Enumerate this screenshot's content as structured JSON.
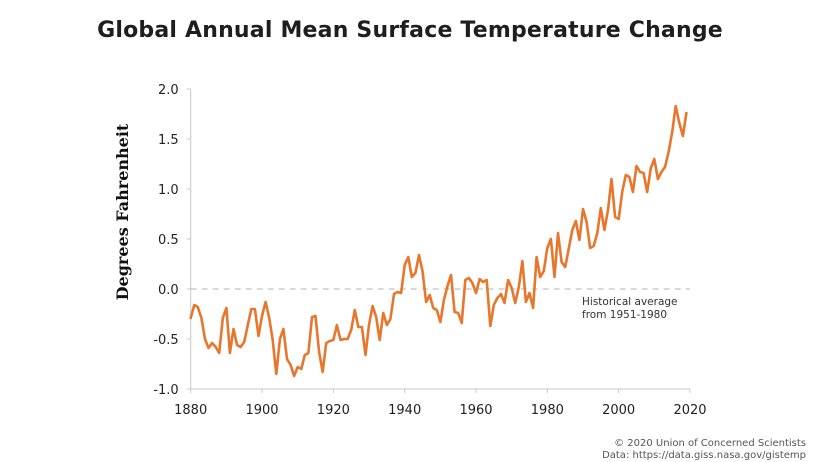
{
  "chart_data": {
    "type": "line",
    "title": "Global Annual Mean Surface Temperature Change",
    "xlabel": "",
    "ylabel": "Degrees Fahrenheit",
    "xlim": [
      1880,
      2020
    ],
    "ylim": [
      -1.0,
      2.0
    ],
    "x_ticks": [
      1880,
      1900,
      1920,
      1940,
      1960,
      1980,
      2000,
      2020
    ],
    "x_tick_labels": [
      "1880",
      "1900",
      "1920",
      "1940",
      "1960",
      "1980",
      "2000",
      "2020"
    ],
    "y_ticks": [
      -1.0,
      -0.5,
      0.0,
      0.5,
      1.0,
      1.5,
      2.0
    ],
    "y_tick_labels": [
      "-1.0",
      "-0.5",
      "0.0",
      "0.5",
      "1.0",
      "1.5",
      "2.0"
    ],
    "grid": false,
    "reference_line": {
      "y": 0.0,
      "style": "dashed",
      "label": "Historical average from 1951-1980"
    },
    "annotation_lines": [
      "Historical average",
      "from 1951-1980"
    ],
    "series": [
      {
        "name": "Global annual mean temperature anomaly",
        "color": "#E8762C",
        "x": [
          1880,
          1881,
          1882,
          1883,
          1884,
          1885,
          1886,
          1887,
          1888,
          1889,
          1890,
          1891,
          1892,
          1893,
          1894,
          1895,
          1896,
          1897,
          1898,
          1899,
          1900,
          1901,
          1902,
          1903,
          1904,
          1905,
          1906,
          1907,
          1908,
          1909,
          1910,
          1911,
          1912,
          1913,
          1914,
          1915,
          1916,
          1917,
          1918,
          1919,
          1920,
          1921,
          1922,
          1923,
          1924,
          1925,
          1926,
          1927,
          1928,
          1929,
          1930,
          1931,
          1932,
          1933,
          1934,
          1935,
          1936,
          1937,
          1938,
          1939,
          1940,
          1941,
          1942,
          1943,
          1944,
          1945,
          1946,
          1947,
          1948,
          1949,
          1950,
          1951,
          1952,
          1953,
          1954,
          1955,
          1956,
          1957,
          1958,
          1959,
          1960,
          1961,
          1962,
          1963,
          1964,
          1965,
          1966,
          1967,
          1968,
          1969,
          1970,
          1971,
          1972,
          1973,
          1974,
          1975,
          1976,
          1977,
          1978,
          1979,
          1980,
          1981,
          1982,
          1983,
          1984,
          1985,
          1986,
          1987,
          1988,
          1989,
          1990,
          1991,
          1992,
          1993,
          1994,
          1995,
          1996,
          1997,
          1998,
          1999,
          2000,
          2001,
          2002,
          2003,
          2004,
          2005,
          2006,
          2007,
          2008,
          2009,
          2010,
          2011,
          2012,
          2013,
          2014,
          2015,
          2016,
          2017,
          2018,
          2019
        ],
        "y": [
          -0.29,
          -0.16,
          -0.18,
          -0.29,
          -0.5,
          -0.59,
          -0.54,
          -0.58,
          -0.64,
          -0.29,
          -0.19,
          -0.64,
          -0.4,
          -0.56,
          -0.58,
          -0.53,
          -0.36,
          -0.2,
          -0.2,
          -0.47,
          -0.27,
          -0.13,
          -0.29,
          -0.51,
          -0.85,
          -0.5,
          -0.4,
          -0.7,
          -0.76,
          -0.87,
          -0.78,
          -0.8,
          -0.66,
          -0.64,
          -0.28,
          -0.27,
          -0.63,
          -0.83,
          -0.54,
          -0.52,
          -0.51,
          -0.36,
          -0.51,
          -0.5,
          -0.5,
          -0.41,
          -0.21,
          -0.38,
          -0.38,
          -0.66,
          -0.36,
          -0.17,
          -0.28,
          -0.51,
          -0.24,
          -0.36,
          -0.3,
          -0.05,
          -0.03,
          -0.04,
          0.24,
          0.32,
          0.12,
          0.16,
          0.34,
          0.18,
          -0.13,
          -0.06,
          -0.19,
          -0.21,
          -0.33,
          -0.11,
          0.03,
          0.14,
          -0.23,
          -0.24,
          -0.34,
          0.09,
          0.11,
          0.06,
          -0.04,
          0.1,
          0.07,
          0.09,
          -0.37,
          -0.16,
          -0.09,
          -0.05,
          -0.14,
          0.09,
          0.01,
          -0.14,
          0.02,
          0.28,
          -0.13,
          -0.04,
          -0.19,
          0.32,
          0.12,
          0.18,
          0.41,
          0.5,
          0.12,
          0.56,
          0.27,
          0.22,
          0.4,
          0.59,
          0.68,
          0.49,
          0.8,
          0.67,
          0.41,
          0.43,
          0.56,
          0.81,
          0.59,
          0.79,
          1.1,
          0.72,
          0.7,
          0.97,
          1.14,
          1.12,
          0.97,
          1.23,
          1.17,
          1.16,
          0.97,
          1.21,
          1.3,
          1.1,
          1.17,
          1.22,
          1.37,
          1.57,
          1.83,
          1.66,
          1.53,
          1.76
        ]
      }
    ]
  },
  "footer": {
    "copyright": "© 2020 Union of Concerned Scientists",
    "source": "Data: https://data.giss.nasa.gov/gistemp"
  }
}
